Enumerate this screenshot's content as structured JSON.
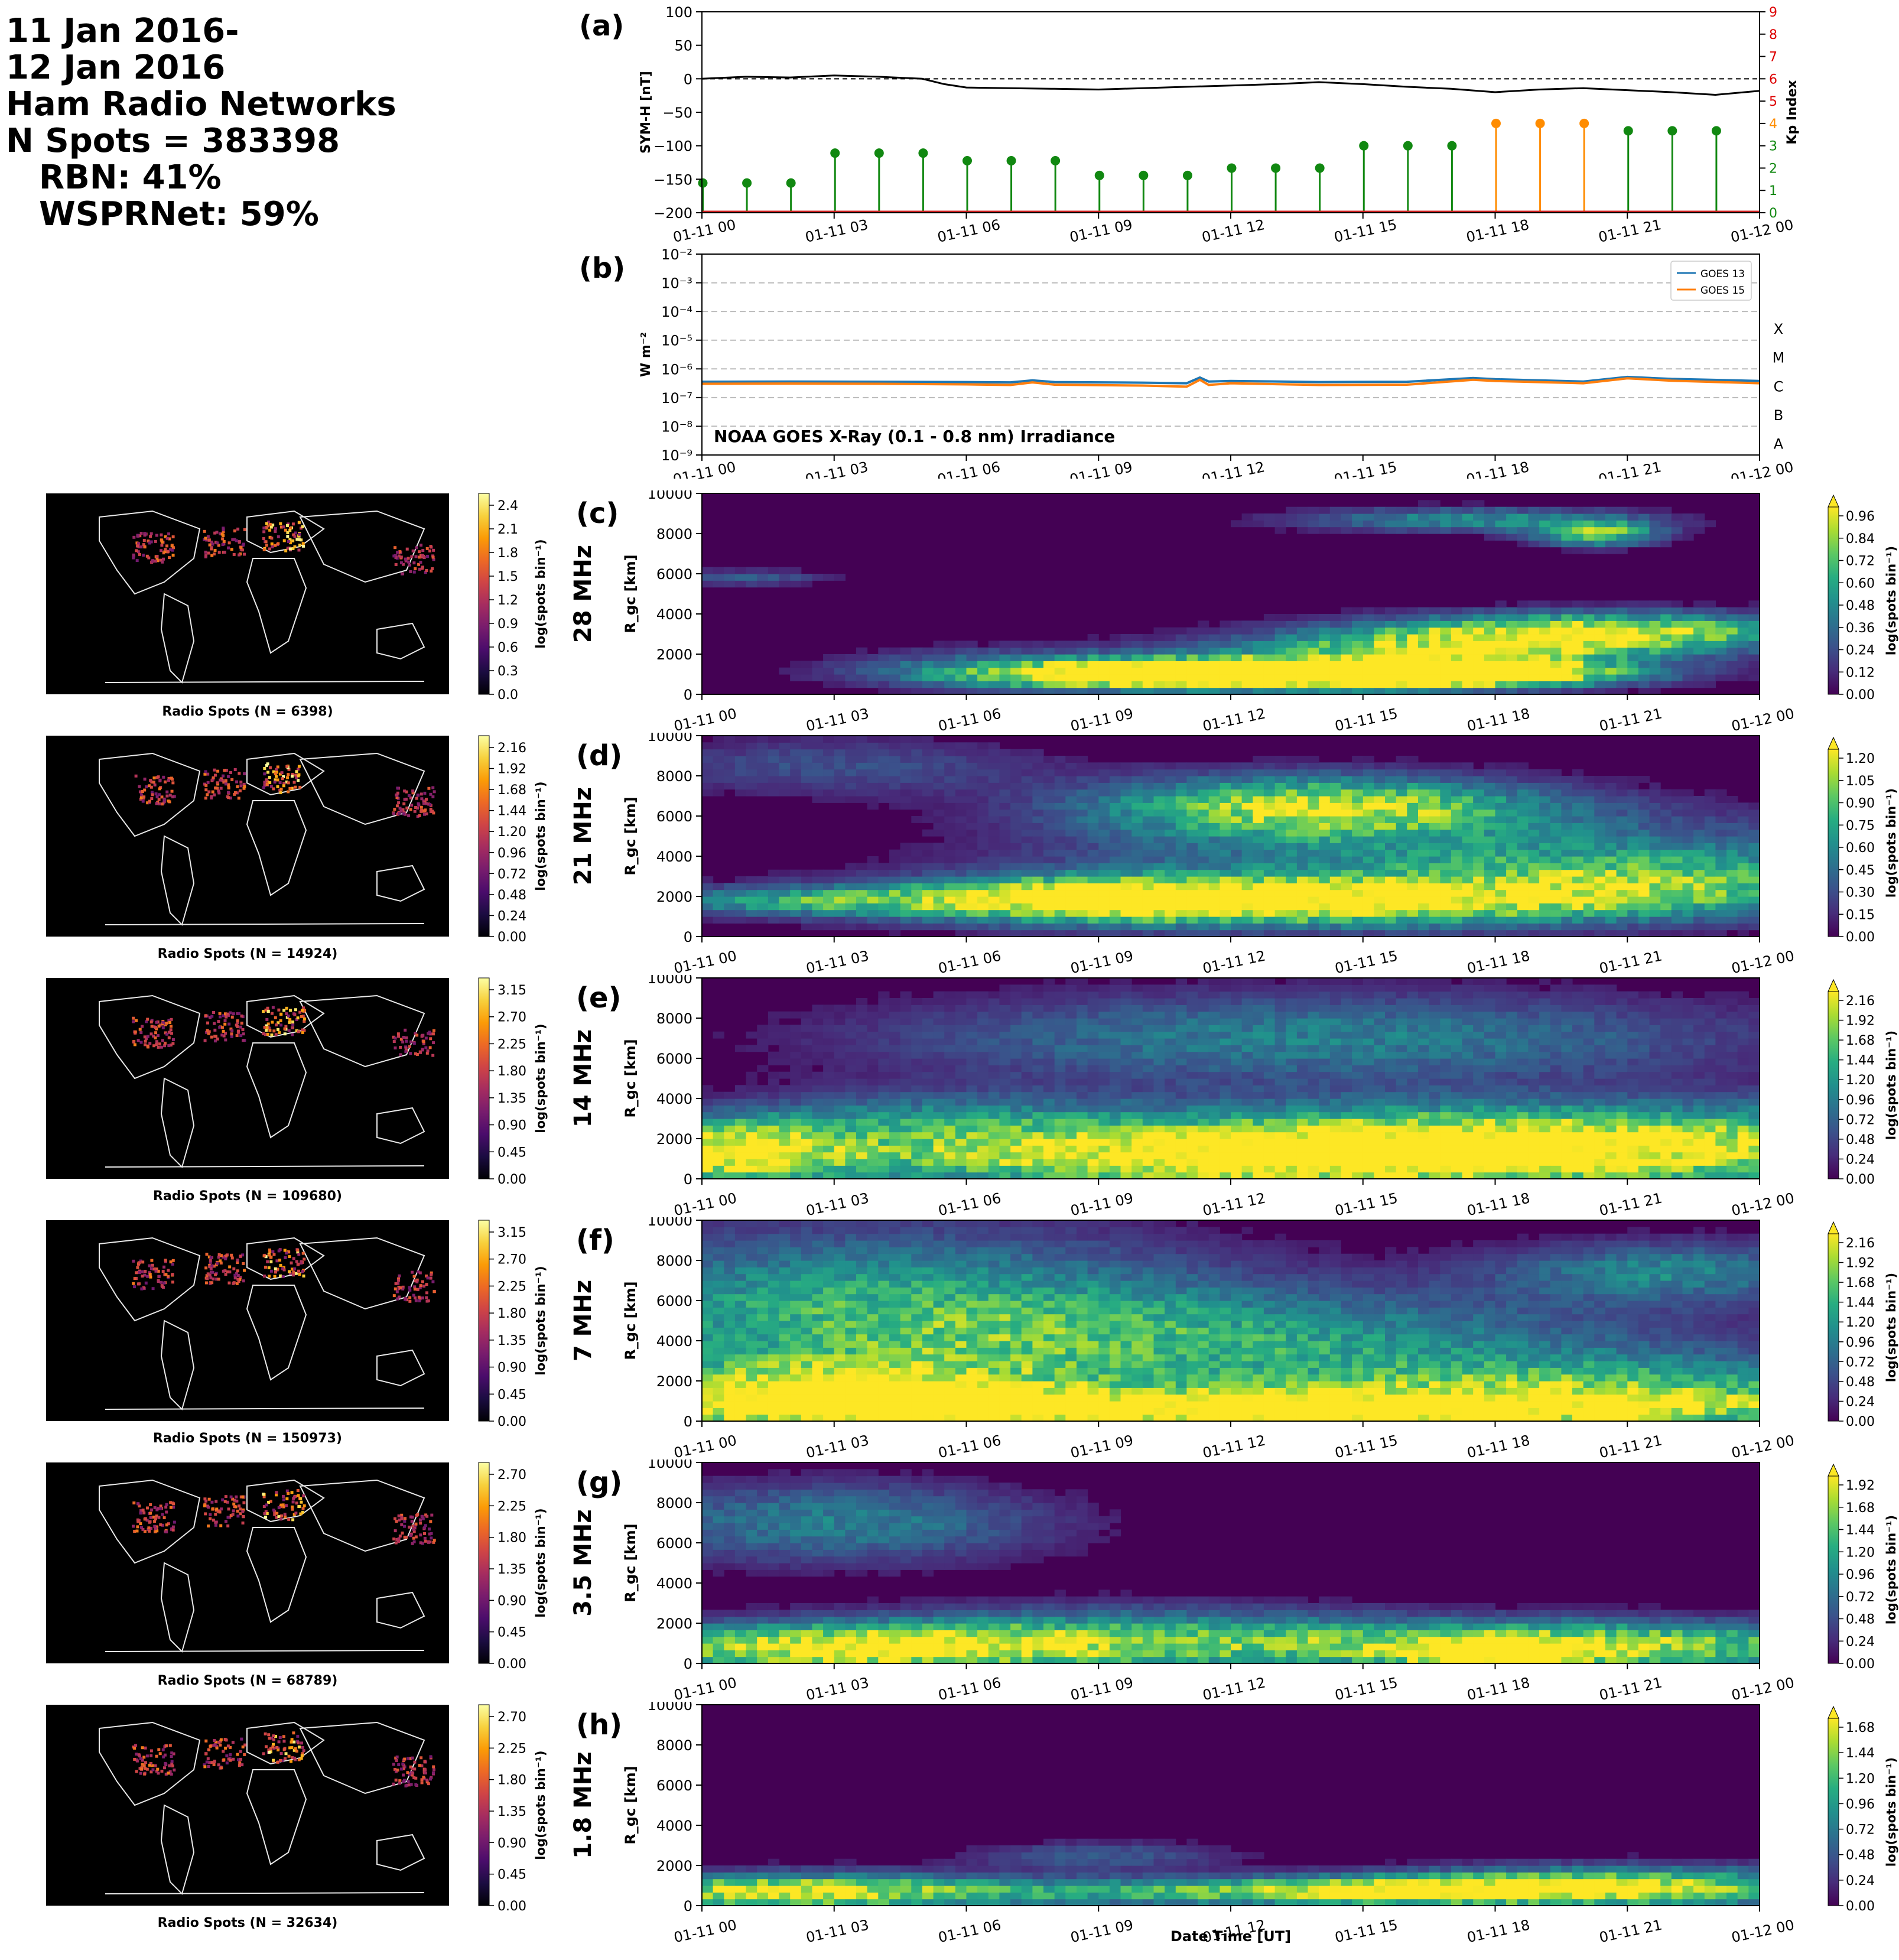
{
  "header": {
    "line1": "11 Jan 2016-",
    "line2": "12 Jan 2016",
    "line3": "Ham Radio Networks",
    "line4": "N Spots = 383398",
    "line5": "RBN: 41%",
    "line6": "WSPRNet: 59%"
  },
  "colors": {
    "symh_line": "#000000",
    "kp_green": "#118811",
    "kp_orange": "#ff8c00",
    "goes13": "#1f77b4",
    "goes15": "#ff7f0e",
    "kp_axis": "#dd0000"
  },
  "time_ticks": [
    "01-11 00",
    "01-11 03",
    "01-11 06",
    "01-11 09",
    "01-11 12",
    "01-11 15",
    "01-11 18",
    "01-11 21",
    "01-12 00"
  ],
  "xlabel": "Date Time [UT]",
  "chart_data": [
    {
      "id": "a",
      "panel_label": "(a)",
      "type": "line",
      "ylabel": "SYM-H [nT]",
      "ylim": [
        -200,
        100
      ],
      "yticks": [
        "100",
        "50",
        "0",
        "−50",
        "−100",
        "−150",
        "−200"
      ],
      "y2label": "Kp Index",
      "y2lim": [
        0,
        9
      ],
      "y2ticks": [
        "0",
        "1",
        "2",
        "3",
        "4",
        "5",
        "6",
        "7",
        "8",
        "9"
      ],
      "x_hours": [
        0,
        1,
        2,
        3,
        4,
        5,
        5.5,
        6,
        7,
        8,
        9,
        10,
        11,
        12,
        13,
        14,
        15,
        16,
        17,
        18,
        19,
        20,
        21,
        22,
        23,
        24
      ],
      "symh": [
        0,
        3,
        2,
        5,
        3,
        0,
        -8,
        -13,
        -14,
        -15,
        -16,
        -14,
        -12,
        -10,
        -8,
        -5,
        -8,
        -12,
        -15,
        -20,
        -16,
        -14,
        -17,
        -20,
        -24,
        -18
      ],
      "kp_hours": [
        0,
        1,
        2,
        3,
        4,
        5,
        6,
        7,
        8,
        9,
        10,
        11,
        12,
        13,
        14,
        15,
        16,
        17,
        18,
        19,
        20,
        21,
        22,
        23
      ],
      "kp_values": [
        1.33,
        1.33,
        1.33,
        2.67,
        2.67,
        2.67,
        2.33,
        2.33,
        2.33,
        1.67,
        1.67,
        1.67,
        2.0,
        2.0,
        2.0,
        3.0,
        3.0,
        3.0,
        4.0,
        4.0,
        4.0,
        3.67,
        3.67,
        3.67
      ],
      "kp_orange_threshold": 4
    },
    {
      "id": "b",
      "panel_label": "(b)",
      "type": "line",
      "ylabel": "W m⁻²",
      "ylog": true,
      "ylim_exp": [
        -9,
        -2
      ],
      "yticks": [
        "10⁻⁹",
        "10⁻⁸",
        "10⁻⁷",
        "10⁻⁶",
        "10⁻⁵",
        "10⁻⁴",
        "10⁻³",
        "10⁻²"
      ],
      "flare_classes": [
        "A",
        "B",
        "C",
        "M",
        "X"
      ],
      "annotation": "NOAA GOES X-Ray (0.1 - 0.8 nm) Irradiance",
      "x_hours": [
        0,
        2,
        4,
        6,
        7,
        7.5,
        8,
        10,
        11,
        11.3,
        11.5,
        12,
        14,
        16,
        17.5,
        18,
        20,
        21,
        22,
        24
      ],
      "series": [
        {
          "name": "GOES 13",
          "log10": [
            -6.45,
            -6.44,
            -6.45,
            -6.46,
            -6.47,
            -6.4,
            -6.46,
            -6.48,
            -6.5,
            -6.3,
            -6.44,
            -6.42,
            -6.46,
            -6.45,
            -6.32,
            -6.36,
            -6.44,
            -6.28,
            -6.35,
            -6.42
          ]
        },
        {
          "name": "GOES 15",
          "log10": [
            -6.52,
            -6.51,
            -6.52,
            -6.54,
            -6.56,
            -6.47,
            -6.55,
            -6.58,
            -6.62,
            -6.38,
            -6.56,
            -6.5,
            -6.56,
            -6.55,
            -6.38,
            -6.42,
            -6.5,
            -6.33,
            -6.41,
            -6.5
          ]
        }
      ]
    },
    {
      "id": "c",
      "panel_label": "(c)",
      "band": "28 MHz",
      "type": "heatmap",
      "ylabel": "R_gc [km]",
      "ylim": [
        0,
        10000
      ],
      "yticks": [
        "0",
        "2000",
        "4000",
        "6000",
        "8000",
        "10000"
      ],
      "cbar_label": "log(spots bin⁻¹)",
      "cbar_ticks": [
        "0.00",
        "0.12",
        "0.24",
        "0.36",
        "0.48",
        "0.60",
        "0.72",
        "0.84",
        "0.96"
      ],
      "map_title": "Radio Spots (N = 6398)",
      "map_cbar_ticks": [
        "0.0",
        "0.3",
        "0.6",
        "0.9",
        "1.2",
        "1.5",
        "1.8",
        "2.1",
        "2.4"
      ],
      "blobs": [
        [
          11,
          1000,
          5,
          700,
          1.0
        ],
        [
          14,
          1000,
          6,
          700,
          1.0
        ],
        [
          17,
          2200,
          5,
          1000,
          0.85
        ],
        [
          20.5,
          3200,
          5,
          900,
          0.9
        ],
        [
          17.5,
          1000,
          3,
          600,
          0.8
        ],
        [
          20.3,
          8000,
          1.4,
          600,
          0.8
        ],
        [
          17.5,
          8700,
          4,
          600,
          0.5
        ],
        [
          7,
          1500,
          4,
          1000,
          0.25
        ],
        [
          1,
          5800,
          2,
          400,
          0.3
        ]
      ]
    },
    {
      "id": "d",
      "panel_label": "(d)",
      "band": "21 MHz",
      "type": "heatmap",
      "ylabel": "R_gc [km]",
      "ylim": [
        0,
        10000
      ],
      "yticks": [
        "0",
        "2000",
        "4000",
        "6000",
        "8000",
        "10000"
      ],
      "cbar_label": "log(spots bin⁻¹)",
      "cbar_ticks": [
        "0.00",
        "0.15",
        "0.30",
        "0.45",
        "0.60",
        "0.75",
        "0.90",
        "1.05",
        "1.20"
      ],
      "map_title": "Radio Spots (N = 14924)",
      "map_cbar_ticks": [
        "0.00",
        "0.24",
        "0.48",
        "0.72",
        "0.96",
        "1.20",
        "1.44",
        "1.68",
        "1.92",
        "2.16"
      ],
      "blobs": [
        [
          14,
          6500,
          5,
          1500,
          0.9
        ],
        [
          13,
          1700,
          8,
          1200,
          0.95
        ],
        [
          9,
          2000,
          4,
          1000,
          0.6
        ],
        [
          18,
          3800,
          10,
          2400,
          0.45
        ],
        [
          2.5,
          1800,
          4,
          700,
          0.5
        ],
        [
          3,
          8500,
          5,
          1500,
          0.25
        ],
        [
          21.5,
          2600,
          5,
          1500,
          0.45
        ]
      ]
    },
    {
      "id": "e",
      "panel_label": "(e)",
      "band": "14 MHz",
      "type": "heatmap",
      "ylabel": "R_gc [km]",
      "ylim": [
        0,
        10000
      ],
      "yticks": [
        "0",
        "2000",
        "4000",
        "6000",
        "8000",
        "10000"
      ],
      "cbar_label": "log(spots bin⁻¹)",
      "cbar_ticks": [
        "0.00",
        "0.24",
        "0.48",
        "0.72",
        "0.96",
        "1.20",
        "1.44",
        "1.68",
        "1.92",
        "2.16"
      ],
      "map_title": "Radio Spots (N = 109680)",
      "map_cbar_ticks": [
        "0.00",
        "0.45",
        "0.90",
        "1.35",
        "1.80",
        "2.25",
        "2.70",
        "3.15"
      ],
      "blobs": [
        [
          14,
          1000,
          12,
          1600,
          1.0
        ],
        [
          0.6,
          1400,
          2.5,
          1600,
          0.85
        ],
        [
          19,
          2200,
          12,
          1800,
          0.7
        ],
        [
          14,
          7000,
          10,
          2300,
          0.45
        ],
        [
          5,
          3000,
          4,
          1500,
          0.3
        ]
      ]
    },
    {
      "id": "f",
      "panel_label": "(f)",
      "band": "7 MHz",
      "type": "heatmap",
      "ylabel": "R_gc [km]",
      "ylim": [
        0,
        10000
      ],
      "yticks": [
        "0",
        "2000",
        "4000",
        "6000",
        "8000",
        "10000"
      ],
      "cbar_label": "log(spots bin⁻¹)",
      "cbar_ticks": [
        "0.00",
        "0.24",
        "0.48",
        "0.72",
        "0.96",
        "1.20",
        "1.44",
        "1.68",
        "1.92",
        "2.16"
      ],
      "map_title": "Radio Spots (N = 150973)",
      "map_cbar_ticks": [
        "0.00",
        "0.45",
        "0.90",
        "1.35",
        "1.80",
        "2.25",
        "2.70",
        "3.15"
      ],
      "blobs": [
        [
          12,
          500,
          13,
          1000,
          1.0
        ],
        [
          3,
          1400,
          5,
          1500,
          0.9
        ],
        [
          20,
          1500,
          8,
          1700,
          0.65
        ],
        [
          4,
          5500,
          8,
          4000,
          0.6
        ],
        [
          13,
          4000,
          10,
          2500,
          0.45
        ],
        [
          22,
          7500,
          4,
          1500,
          0.45
        ]
      ]
    },
    {
      "id": "g",
      "panel_label": "(g)",
      "band": "3.5 MHz",
      "type": "heatmap",
      "ylabel": "R_gc [km]",
      "ylim": [
        0,
        10000
      ],
      "yticks": [
        "0",
        "2000",
        "4000",
        "6000",
        "8000",
        "10000"
      ],
      "cbar_label": "log(spots bin⁻¹)",
      "cbar_ticks": [
        "0.00",
        "0.24",
        "0.48",
        "0.72",
        "0.96",
        "1.20",
        "1.44",
        "1.68",
        "1.92"
      ],
      "map_title": "Radio Spots (N = 68789)",
      "map_cbar_ticks": [
        "0.00",
        "0.45",
        "0.90",
        "1.35",
        "1.80",
        "2.25",
        "2.70"
      ],
      "blobs": [
        [
          3,
          800,
          6,
          1200,
          1.0
        ],
        [
          20,
          900,
          7,
          1200,
          0.95
        ],
        [
          10,
          1200,
          6,
          1600,
          0.55
        ],
        [
          3,
          7000,
          5,
          2000,
          0.45
        ],
        [
          18,
          500,
          2,
          600,
          0.8
        ]
      ]
    },
    {
      "id": "h",
      "panel_label": "(h)",
      "band": "1.8 MHz",
      "type": "heatmap",
      "ylabel": "R_gc [km]",
      "ylim": [
        0,
        10000
      ],
      "yticks": [
        "0",
        "2000",
        "4000",
        "6000",
        "8000",
        "10000"
      ],
      "cbar_label": "log(spots bin⁻¹)",
      "cbar_ticks": [
        "0.00",
        "0.24",
        "0.48",
        "0.72",
        "0.96",
        "1.20",
        "1.44",
        "1.68"
      ],
      "map_title": "Radio Spots (N = 32634)",
      "map_cbar_ticks": [
        "0.00",
        "0.45",
        "0.90",
        "1.35",
        "1.80",
        "2.25",
        "2.70"
      ],
      "blobs": [
        [
          2,
          700,
          5,
          900,
          1.0
        ],
        [
          21,
          900,
          5,
          1000,
          0.95
        ],
        [
          12,
          700,
          6,
          700,
          0.6
        ],
        [
          16,
          800,
          4,
          700,
          0.55
        ],
        [
          9,
          2500,
          3,
          700,
          0.3
        ]
      ]
    }
  ]
}
